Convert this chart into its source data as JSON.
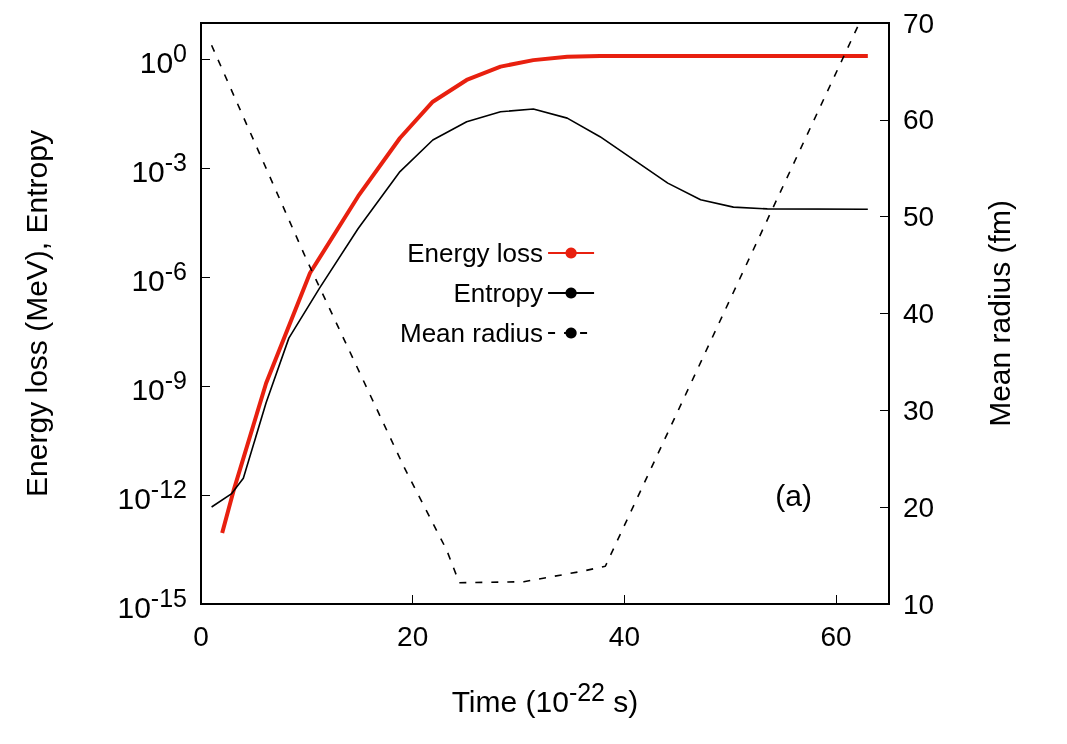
{
  "chart_data": {
    "type": "line",
    "xlabel": "Time (10$^{-22}$ s)",
    "ylabel": "Energy loss (MeV), Entropy",
    "y2label": "Mean radius (fm)",
    "xlim": [
      0,
      65
    ],
    "xticks": [
      0,
      20,
      40,
      60
    ],
    "ylim": [
      1e-15,
      10
    ],
    "yticks": [
      {
        "value": 1e-15,
        "label": "10$^{-15}$"
      },
      {
        "value": 1e-12,
        "label": "10$^{-12}$"
      },
      {
        "value": 1e-09,
        "label": "10$^{-9}$"
      },
      {
        "value": 1e-06,
        "label": "10$^{-6}$"
      },
      {
        "value": 0.001,
        "label": "10$^{-3}$"
      },
      {
        "value": 1,
        "label": "10$^{0}$"
      }
    ],
    "y2lim": [
      10,
      70
    ],
    "y2ticks": [
      10,
      20,
      30,
      40,
      50,
      60,
      70
    ],
    "log": "y",
    "grid": false,
    "legend": "center",
    "marker": "none",
    "annotations": [
      "(a)"
    ],
    "series": [
      {
        "name": "Energy loss",
        "color": "#e8200f",
        "line_style": "solid",
        "x": [
          2.0,
          3.07,
          6.15,
          10.3,
          14.85,
          18.8,
          21.9,
          25.1,
          28.3,
          31.4,
          34.6,
          37.7,
          45,
          63
        ],
        "values": [
          9e-14,
          1.3e-12,
          1.2e-09,
          1.3e-06,
          0.00017,
          0.0068,
          0.068,
          0.27,
          0.63,
          0.95,
          1.17,
          1.23,
          1.23,
          1.23
        ]
      },
      {
        "name": "Entropy",
        "color": "#000000",
        "line_style": "solid",
        "x": [
          1.0,
          2.9,
          4.0,
          6.15,
          8.3,
          11.2,
          14.85,
          18.8,
          21.9,
          25.1,
          28.3,
          31.4,
          34.6,
          37.7,
          40.9,
          44.1,
          47.2,
          50.3,
          53.5,
          63
        ],
        "values": [
          4.7e-13,
          1.1e-12,
          2.9e-12,
          3.5e-10,
          2.1e-08,
          5e-07,
          2.2e-05,
          0.00081,
          0.006,
          0.019,
          0.036,
          0.043,
          0.024,
          0.0074,
          0.0017,
          0.00039,
          0.000135,
          8.5e-05,
          7.6e-05,
          7.4e-05
        ]
      },
      {
        "name": "Mean radius",
        "color": "#000000",
        "line_style": "dashed",
        "axis": "y2",
        "x": [
          1.0,
          10,
          19.2,
          23.2,
          24.4,
          30.5,
          36.1,
          38.2,
          62.2
        ],
        "values": [
          67.7,
          45.5,
          24.1,
          15.6,
          12.2,
          12.3,
          13.4,
          13.9,
          70
        ]
      }
    ]
  }
}
